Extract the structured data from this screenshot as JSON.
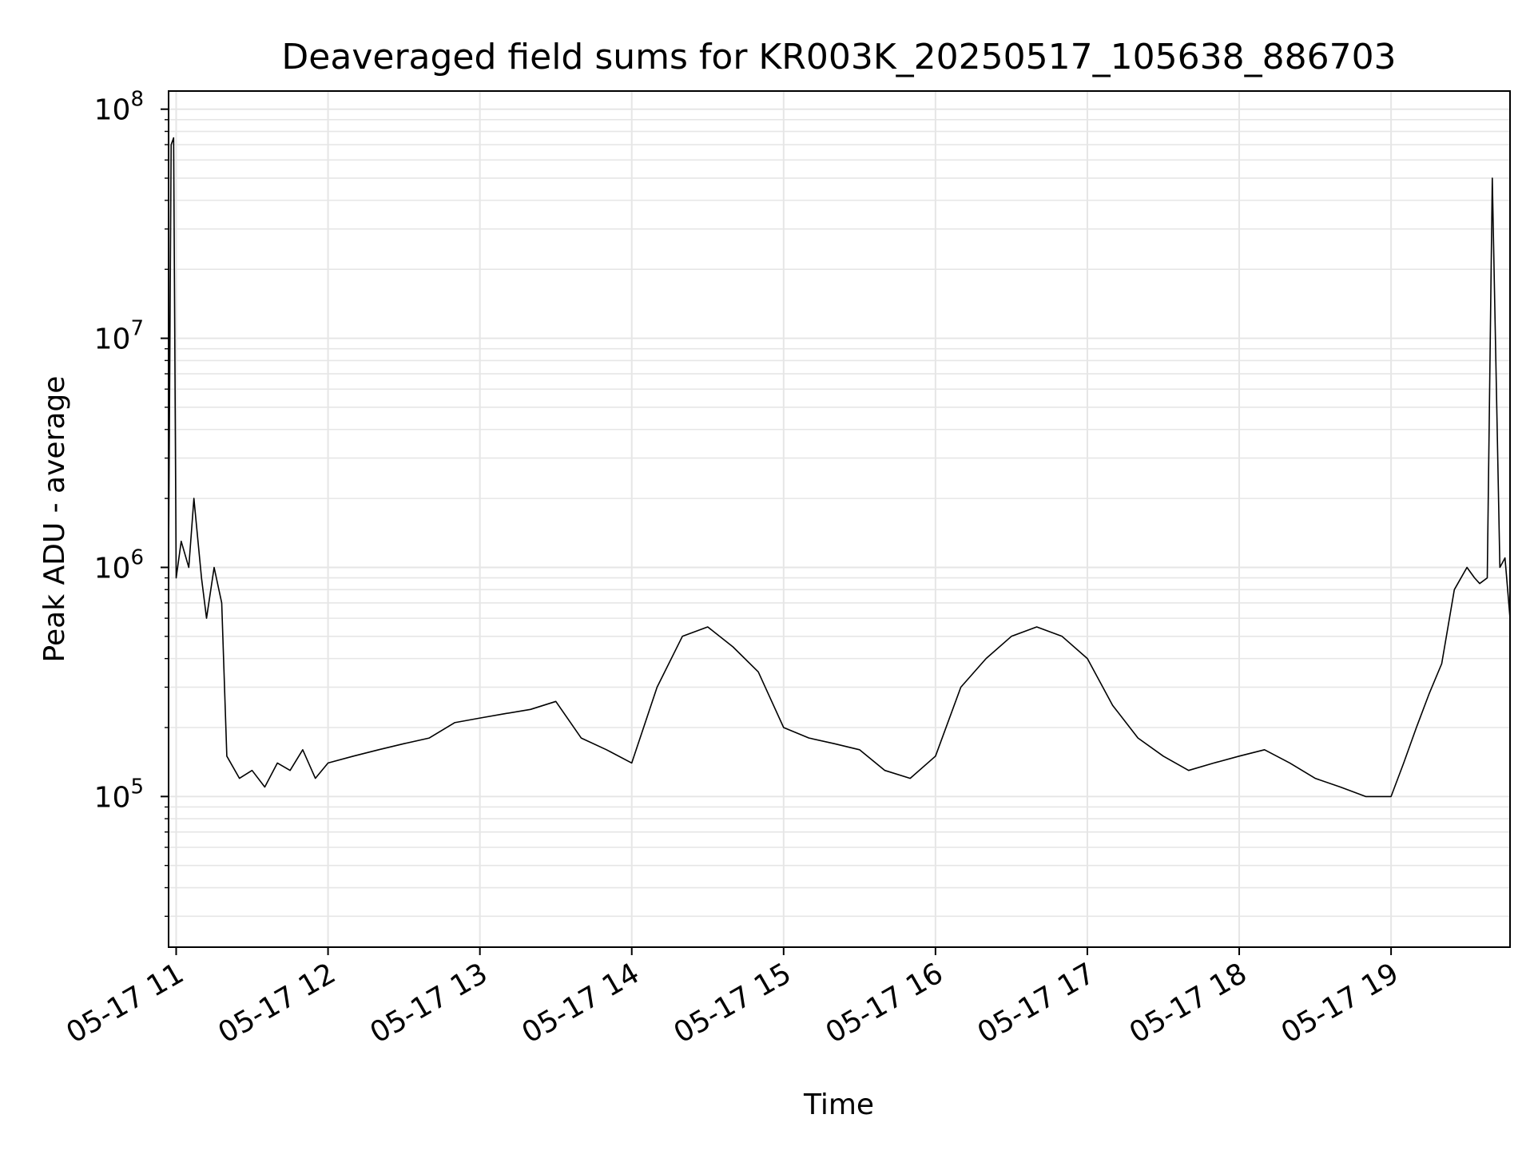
{
  "chart_data": {
    "type": "line",
    "title": "Deaveraged field sums for KR003K_20250517_105638_886703",
    "xlabel": "Time",
    "ylabel": "Peak ADU - average",
    "yscale": "log",
    "ylim": [
      22000,
      120000000
    ],
    "xlim": [
      "2025-05-17 10:57",
      "2025-05-17 19:47"
    ],
    "grid": true,
    "line_color": "#000000",
    "grid_color": "#e6e6e6",
    "x_ticks": [
      {
        "value": "2025-05-17 11:00",
        "label": "05-17 11"
      },
      {
        "value": "2025-05-17 12:00",
        "label": "05-17 12"
      },
      {
        "value": "2025-05-17 13:00",
        "label": "05-17 13"
      },
      {
        "value": "2025-05-17 14:00",
        "label": "05-17 14"
      },
      {
        "value": "2025-05-17 15:00",
        "label": "05-17 15"
      },
      {
        "value": "2025-05-17 16:00",
        "label": "05-17 16"
      },
      {
        "value": "2025-05-17 17:00",
        "label": "05-17 17"
      },
      {
        "value": "2025-05-17 18:00",
        "label": "05-17 18"
      },
      {
        "value": "2025-05-17 19:00",
        "label": "05-17 19"
      }
    ],
    "y_ticks": [
      {
        "value": 100000,
        "base": "10",
        "exp": "5"
      },
      {
        "value": 1000000,
        "base": "10",
        "exp": "6"
      },
      {
        "value": 10000000,
        "base": "10",
        "exp": "7"
      },
      {
        "value": 100000000,
        "base": "10",
        "exp": "8"
      }
    ],
    "series": [
      {
        "x": [
          "2025-05-17 10:57",
          "2025-05-17 10:58",
          "2025-05-17 10:59",
          "2025-05-17 11:00",
          "2025-05-17 11:02",
          "2025-05-17 11:05",
          "2025-05-17 11:07",
          "2025-05-17 11:10",
          "2025-05-17 11:12",
          "2025-05-17 11:15",
          "2025-05-17 11:18",
          "2025-05-17 11:20",
          "2025-05-17 11:25",
          "2025-05-17 11:30",
          "2025-05-17 11:35",
          "2025-05-17 11:40",
          "2025-05-17 11:45",
          "2025-05-17 11:50",
          "2025-05-17 11:55",
          "2025-05-17 12:00",
          "2025-05-17 12:10",
          "2025-05-17 12:20",
          "2025-05-17 12:30",
          "2025-05-17 12:40",
          "2025-05-17 12:50",
          "2025-05-17 13:00",
          "2025-05-17 13:10",
          "2025-05-17 13:20",
          "2025-05-17 13:30",
          "2025-05-17 13:40",
          "2025-05-17 13:50",
          "2025-05-17 14:00",
          "2025-05-17 14:10",
          "2025-05-17 14:20",
          "2025-05-17 14:30",
          "2025-05-17 14:40",
          "2025-05-17 14:50",
          "2025-05-17 15:00",
          "2025-05-17 15:10",
          "2025-05-17 15:20",
          "2025-05-17 15:30",
          "2025-05-17 15:40",
          "2025-05-17 15:50",
          "2025-05-17 16:00",
          "2025-05-17 16:10",
          "2025-05-17 16:20",
          "2025-05-17 16:30",
          "2025-05-17 16:40",
          "2025-05-17 16:50",
          "2025-05-17 17:00",
          "2025-05-17 17:10",
          "2025-05-17 17:20",
          "2025-05-17 17:30",
          "2025-05-17 17:40",
          "2025-05-17 17:50",
          "2025-05-17 18:00",
          "2025-05-17 18:10",
          "2025-05-17 18:20",
          "2025-05-17 18:30",
          "2025-05-17 18:40",
          "2025-05-17 18:50",
          "2025-05-17 19:00",
          "2025-05-17 19:05",
          "2025-05-17 19:10",
          "2025-05-17 19:15",
          "2025-05-17 19:20",
          "2025-05-17 19:25",
          "2025-05-17 19:30",
          "2025-05-17 19:33",
          "2025-05-17 19:35",
          "2025-05-17 19:38",
          "2025-05-17 19:40",
          "2025-05-17 19:43",
          "2025-05-17 19:45",
          "2025-05-17 19:47"
        ],
        "y": [
          1100000,
          70000000,
          75000000,
          900000,
          1300000,
          1000000,
          2000000,
          900000,
          600000,
          1000000,
          700000,
          150000,
          120000,
          130000,
          110000,
          140000,
          130000,
          160000,
          120000,
          140000,
          150000,
          160000,
          170000,
          180000,
          210000,
          220000,
          230000,
          240000,
          260000,
          180000,
          160000,
          140000,
          300000,
          500000,
          550000,
          450000,
          350000,
          200000,
          180000,
          170000,
          160000,
          130000,
          120000,
          150000,
          300000,
          400000,
          500000,
          550000,
          500000,
          400000,
          250000,
          180000,
          150000,
          130000,
          140000,
          150000,
          160000,
          140000,
          120000,
          110000,
          100000,
          100000,
          140000,
          200000,
          280000,
          380000,
          800000,
          1000000,
          900000,
          850000,
          900000,
          50000000,
          1000000,
          1100000,
          600000
        ]
      }
    ]
  }
}
